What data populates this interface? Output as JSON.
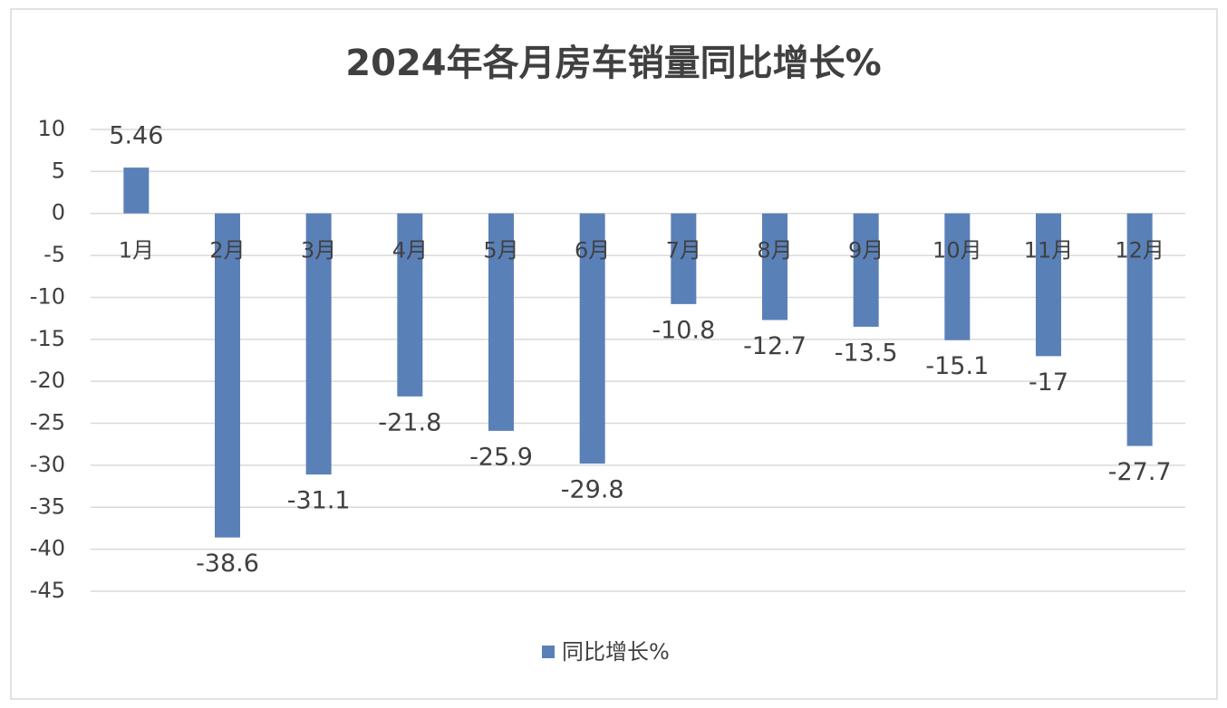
{
  "chart_data": {
    "type": "bar",
    "title": "2024年各月房车销量同比增长%",
    "categories": [
      "1月",
      "2月",
      "3月",
      "4月",
      "5月",
      "6月",
      "7月",
      "8月",
      "9月",
      "10月",
      "11月",
      "12月"
    ],
    "series": [
      {
        "name": "同比增长%",
        "color": "#5a80b8",
        "values": [
          5.46,
          -38.6,
          -31.1,
          -21.8,
          -25.9,
          -29.8,
          -10.8,
          -12.7,
          -13.5,
          -15.1,
          -17,
          -27.7
        ]
      }
    ],
    "ylim": [
      -45,
      10
    ],
    "yticks": [
      10,
      5,
      0,
      -5,
      -10,
      -15,
      -20,
      -25,
      -30,
      -35,
      -40,
      -45
    ],
    "grid": true,
    "legend": "bottom"
  }
}
